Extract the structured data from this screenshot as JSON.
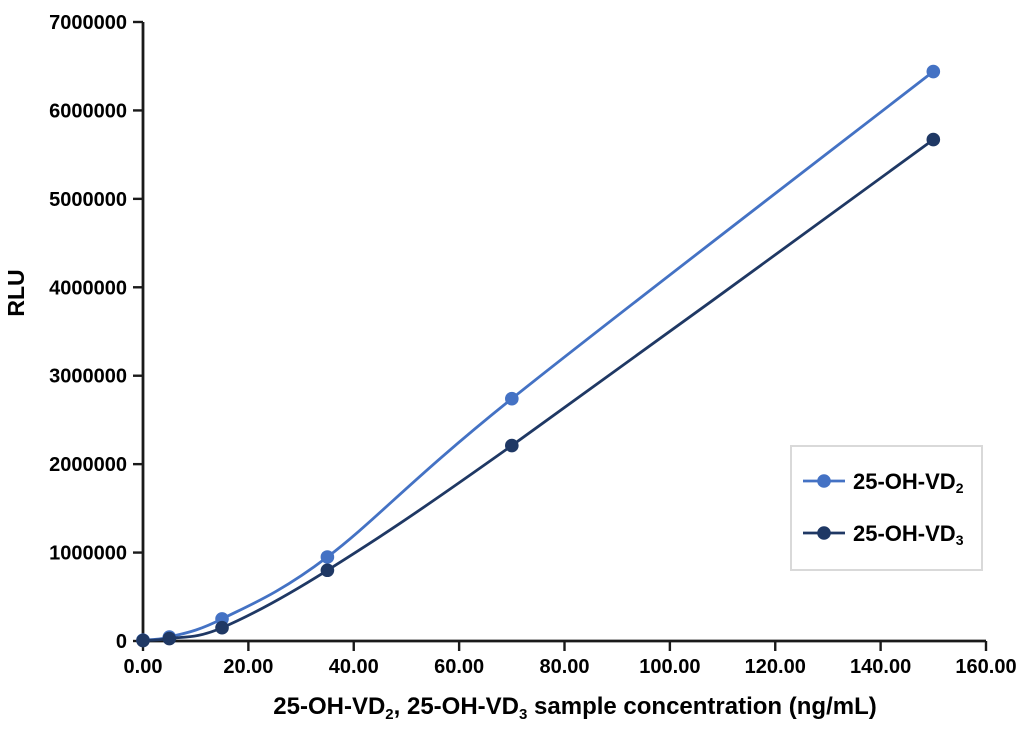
{
  "figure": {
    "background": "#FFFFFF",
    "axis_color": "#1A1A1A",
    "text_color": "#000000",
    "legend_border_color": "#D9D9D9",
    "legend_fill": "#FFFFFF"
  },
  "chart_data": {
    "type": "line",
    "title": "",
    "xlabel": "25-OH-VD₂、 25-OH-VD₃ sample concentration (ng/mL)",
    "xlabel_segments": [
      {
        "t": "25-OH-VD"
      },
      {
        "sub": "2"
      },
      {
        "t": "、 "
      },
      {
        "t": "25-OH-VD"
      },
      {
        "sub": "3"
      },
      {
        "t": " sample concentration (ng/mL)"
      }
    ],
    "ylabel": "RLU",
    "xlim": [
      0,
      160
    ],
    "ylim": [
      0,
      7000000
    ],
    "x_ticks": [
      "0.00",
      "20.00",
      "40.00",
      "60.00",
      "80.00",
      "100.00",
      "120.00",
      "140.00",
      "160.00"
    ],
    "y_ticks": [
      "0",
      "1000000",
      "2000000",
      "3000000",
      "4000000",
      "5000000",
      "6000000",
      "7000000"
    ],
    "grid": false,
    "smooth": true,
    "marker": "circle",
    "legend_position": "right-middle",
    "x": [
      0,
      5,
      15,
      35,
      70,
      150
    ],
    "series": [
      {
        "name": "25-OH-VD2",
        "label": "25-OH-VD₂",
        "label_segments": [
          {
            "t": "25-OH-VD"
          },
          {
            "sub": "2"
          }
        ],
        "color": "#4472C4",
        "values": [
          10000,
          45000,
          250000,
          950000,
          2740000,
          6440000
        ]
      },
      {
        "name": "25-OH-VD3",
        "label": "25-OH-VD₃",
        "label_segments": [
          {
            "t": "25-OH-VD"
          },
          {
            "sub": "3"
          }
        ],
        "color": "#1F3864",
        "values": [
          5000,
          28000,
          150000,
          800000,
          2210000,
          5670000
        ]
      }
    ]
  }
}
